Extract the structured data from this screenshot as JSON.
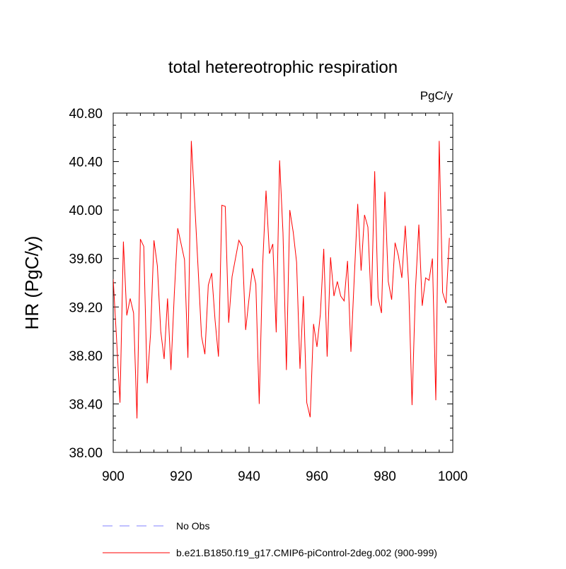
{
  "chart_data": {
    "type": "line",
    "title": "total hetereotrophic respiration",
    "units_label": "PgC/y",
    "ylabel": "HR  (PgC/y)",
    "xlabel": "",
    "xlim": [
      900,
      1000
    ],
    "ylim": [
      38.0,
      40.8
    ],
    "x_ticks": [
      900,
      920,
      940,
      960,
      980,
      1000
    ],
    "x_tick_labels": [
      "900",
      "920",
      "940",
      "960",
      "980",
      "1000"
    ],
    "y_ticks": [
      38.0,
      38.4,
      38.8,
      39.2,
      39.6,
      40.0,
      40.4,
      40.8
    ],
    "y_tick_labels": [
      "38.00",
      "38.40",
      "38.80",
      "39.20",
      "39.60",
      "40.00",
      "40.40",
      "40.80"
    ],
    "grid": false,
    "legend_position": "bottom-left",
    "series": [
      {
        "name": "No Obs",
        "color": "#8080ff",
        "style": "dashed",
        "x": [],
        "values": []
      },
      {
        "name": "b.e21.B1850.f19_g17.CMIP6-piControl-2deg.002 (900-999)",
        "color": "#ff0000",
        "style": "solid",
        "x": [
          900,
          901,
          902,
          903,
          904,
          905,
          906,
          907,
          908,
          909,
          910,
          911,
          912,
          913,
          914,
          915,
          916,
          917,
          918,
          919,
          920,
          921,
          922,
          923,
          924,
          925,
          926,
          927,
          928,
          929,
          930,
          931,
          932,
          933,
          934,
          935,
          936,
          937,
          938,
          939,
          940,
          941,
          942,
          943,
          944,
          945,
          946,
          947,
          948,
          949,
          950,
          951,
          952,
          953,
          954,
          955,
          956,
          957,
          958,
          959,
          960,
          961,
          962,
          963,
          964,
          965,
          966,
          967,
          968,
          969,
          970,
          971,
          972,
          973,
          974,
          975,
          976,
          977,
          978,
          979,
          980,
          981,
          982,
          983,
          984,
          985,
          986,
          987,
          988,
          989,
          990,
          991,
          992,
          993,
          994,
          995,
          996,
          997,
          998,
          999
        ],
        "values": [
          39.43,
          38.93,
          38.41,
          39.74,
          39.13,
          39.27,
          39.15,
          38.28,
          39.76,
          39.7,
          38.57,
          38.98,
          39.75,
          39.54,
          39.0,
          38.77,
          39.27,
          38.68,
          39.31,
          39.85,
          39.72,
          39.59,
          38.78,
          40.57,
          40.06,
          39.52,
          38.96,
          38.81,
          39.38,
          39.48,
          39.09,
          38.79,
          40.04,
          40.03,
          39.07,
          39.45,
          39.6,
          39.75,
          39.7,
          39.01,
          39.27,
          39.52,
          39.39,
          38.4,
          39.54,
          40.16,
          39.64,
          39.72,
          38.99,
          40.41,
          39.81,
          38.68,
          40.0,
          39.82,
          39.57,
          38.69,
          39.29,
          38.41,
          38.29,
          39.06,
          38.87,
          39.14,
          39.68,
          38.79,
          39.61,
          39.29,
          39.41,
          39.29,
          39.25,
          39.58,
          38.83,
          39.45,
          40.05,
          39.5,
          39.96,
          39.86,
          39.21,
          40.32,
          39.28,
          39.15,
          40.15,
          39.41,
          39.26,
          39.73,
          39.62,
          39.44,
          39.87,
          39.39,
          38.39,
          39.34,
          39.88,
          39.21,
          39.44,
          39.42,
          39.6,
          38.43,
          40.57,
          39.32,
          39.23,
          39.77
        ]
      }
    ]
  }
}
